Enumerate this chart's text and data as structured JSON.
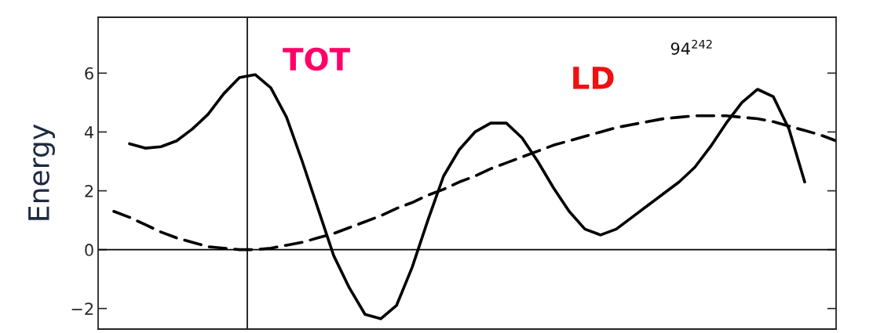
{
  "chart_data": {
    "type": "line",
    "ylabel": "Energy",
    "categories": [
      null,
      null,
      null,
      null,
      null,
      null,
      null,
      null,
      null,
      null,
      null,
      null,
      null,
      null,
      null,
      null,
      null,
      null,
      null,
      null,
      null,
      null,
      null,
      null,
      null,
      null,
      null,
      null,
      null,
      null,
      null,
      null,
      null,
      null,
      null,
      null,
      null,
      null,
      null,
      null,
      null,
      null,
      null,
      null,
      null,
      null,
      null,
      null
    ],
    "series": [
      {
        "color": "#000000",
        "line_style": "solid",
        "values": [
          null,
          null,
          3.6,
          3.45,
          3.5,
          3.7,
          4.1,
          4.6,
          5.3,
          5.85,
          5.95,
          5.5,
          4.5,
          3.0,
          1.4,
          -0.2,
          -1.3,
          -2.2,
          -2.35,
          -1.9,
          -0.6,
          1.0,
          2.5,
          3.4,
          4.0,
          4.3,
          4.3,
          3.8,
          3.0,
          2.1,
          1.3,
          0.7,
          0.5,
          0.7,
          1.1,
          1.5,
          1.9,
          2.3,
          2.8,
          3.5,
          4.3,
          5.0,
          5.45,
          5.2,
          4.1,
          2.3,
          null,
          null
        ]
      },
      {
        "color": "#000000",
        "line_style": "dashed",
        "values": [
          null,
          1.3,
          1.1,
          0.85,
          0.6,
          0.4,
          0.25,
          0.1,
          0.05,
          0.0,
          0.0,
          0.05,
          0.15,
          0.25,
          0.4,
          0.55,
          0.75,
          0.95,
          1.15,
          1.4,
          1.6,
          1.85,
          2.05,
          2.3,
          2.5,
          2.75,
          2.95,
          3.15,
          3.35,
          3.55,
          3.7,
          3.85,
          4.0,
          4.15,
          4.25,
          4.35,
          4.45,
          4.5,
          4.55,
          4.55,
          4.55,
          4.5,
          4.45,
          4.35,
          4.2,
          4.05,
          3.9,
          3.7
        ]
      }
    ],
    "ylim": [
      -2.7,
      7.9
    ],
    "yticks": [
      {
        "value": -2,
        "label": "−2"
      },
      0,
      2,
      4,
      6
    ],
    "ref_lines": [
      {
        "axis": "y",
        "value": 0,
        "color": "#000000"
      }
    ],
    "annotations": [
      "TOT",
      "LD",
      "94$^{242}$"
    ],
    "tick_labels": "y",
    "grid": false,
    "legend": false
  }
}
